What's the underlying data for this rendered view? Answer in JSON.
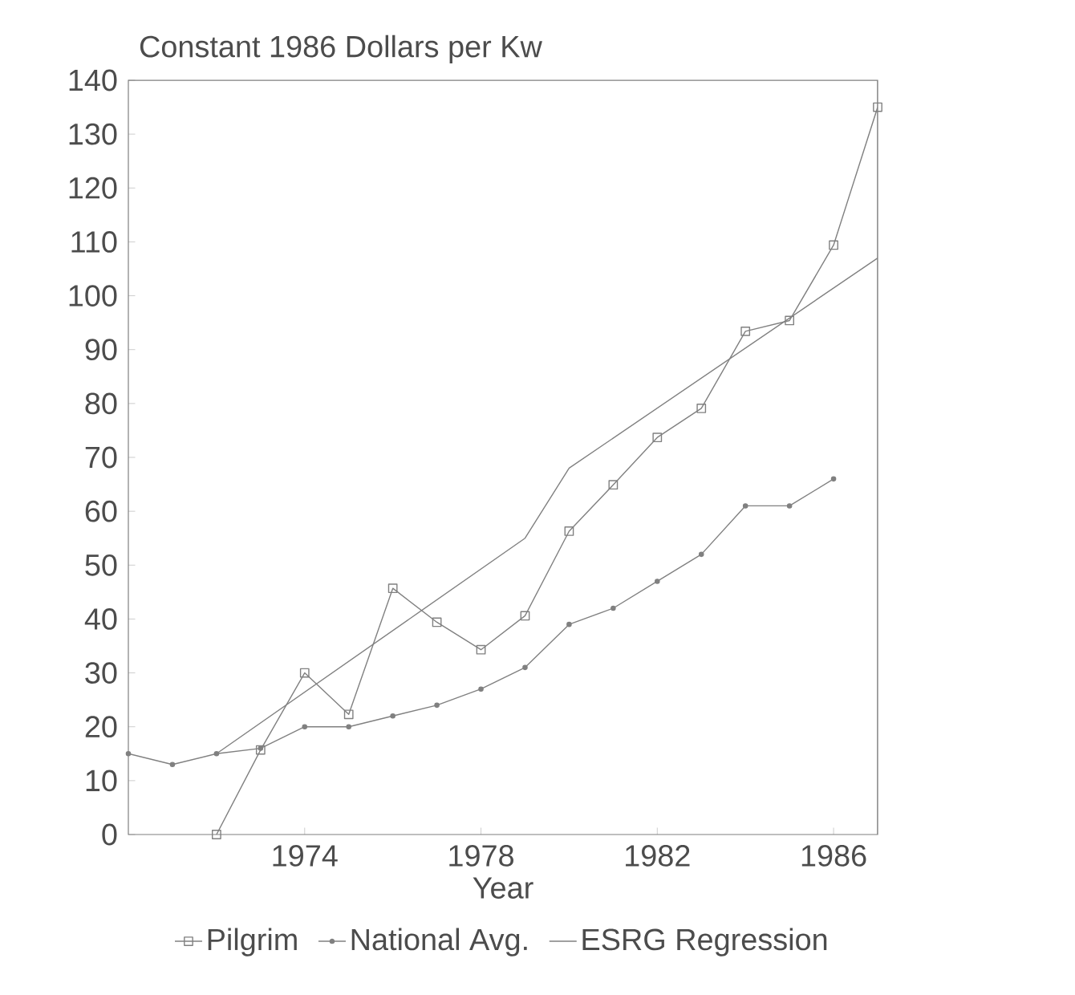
{
  "chart_data": {
    "type": "line",
    "title": "Constant 1986 Dollars per Kw",
    "xlabel": "Year",
    "xlim": [
      1970,
      1987
    ],
    "xticks": [
      1974,
      1978,
      1982,
      1986
    ],
    "ylim": [
      0,
      140
    ],
    "yticks": [
      0,
      10,
      20,
      30,
      40,
      50,
      60,
      70,
      80,
      90,
      100,
      110,
      120,
      130,
      140
    ],
    "grid": false,
    "legend": "bottom",
    "line_style": "solid",
    "series": [
      {
        "name": "Pilgrim",
        "color": "#808080",
        "marker": "square",
        "x": [
          1972,
          1973,
          1974,
          1975,
          1976,
          1977,
          1978,
          1979,
          1980,
          1981,
          1982,
          1983,
          1984,
          1985,
          1986,
          1987
        ],
        "values": [
          0,
          15.7,
          30,
          22.3,
          45.7,
          39.4,
          34.3,
          40.6,
          56.3,
          64.9,
          73.7,
          79.1,
          93.4,
          95.4,
          109.4,
          135
        ]
      },
      {
        "name": "National Avg.",
        "color": "#808080",
        "marker": "circle",
        "x": [
          1970,
          1971,
          1972,
          1973,
          1974,
          1975,
          1976,
          1977,
          1978,
          1979,
          1980,
          1981,
          1982,
          1983,
          1984,
          1985,
          1986
        ],
        "values": [
          15,
          13,
          15,
          16,
          20,
          20,
          22,
          24,
          27,
          31,
          39,
          42,
          47,
          52,
          61,
          61,
          66
        ]
      },
      {
        "name": "ESRG Regression",
        "color": "#808080",
        "marker": "none",
        "x": [
          1972,
          1979,
          1980,
          1987
        ],
        "values": [
          15,
          55,
          68,
          107
        ]
      }
    ]
  }
}
